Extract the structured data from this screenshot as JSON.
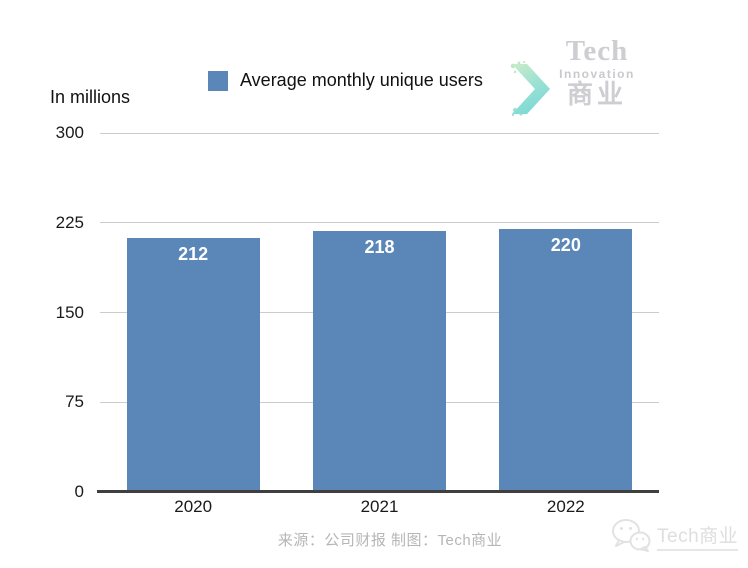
{
  "header": {
    "units_label": "In millions"
  },
  "legend": {
    "label": "Average monthly unique users",
    "swatch_color": "#5b87b8"
  },
  "logo": {
    "line1": "Tech",
    "line2": "Innovation",
    "line3": "商业"
  },
  "chart_data": {
    "type": "bar",
    "title": "",
    "categories": [
      "2020",
      "2021",
      "2022"
    ],
    "values": [
      212,
      218,
      220
    ],
    "series_name": "Average monthly unique users",
    "xlabel": "",
    "ylabel": "In millions",
    "ylim": [
      0,
      300
    ],
    "yticks": [
      0,
      75,
      150,
      225,
      300
    ],
    "grid": true,
    "legend_position": "top",
    "bar_color": "#5b87b8",
    "value_label_color": "#ffffff"
  },
  "footer": {
    "source_text": "来源：公司财报 制图：Tech商业"
  },
  "watermark": {
    "name_en": "Tech",
    "name_cn": "商业"
  },
  "colors": {
    "bar": "#5b87b8",
    "axis": "#3f3f3f",
    "gridline": "#cccccc",
    "footer_text": "#b6b6b6",
    "logo_text": "#cdcdd2",
    "chevron_gradient_top": "#c9ecc9",
    "chevron_gradient_bottom": "#7ed9d6"
  }
}
